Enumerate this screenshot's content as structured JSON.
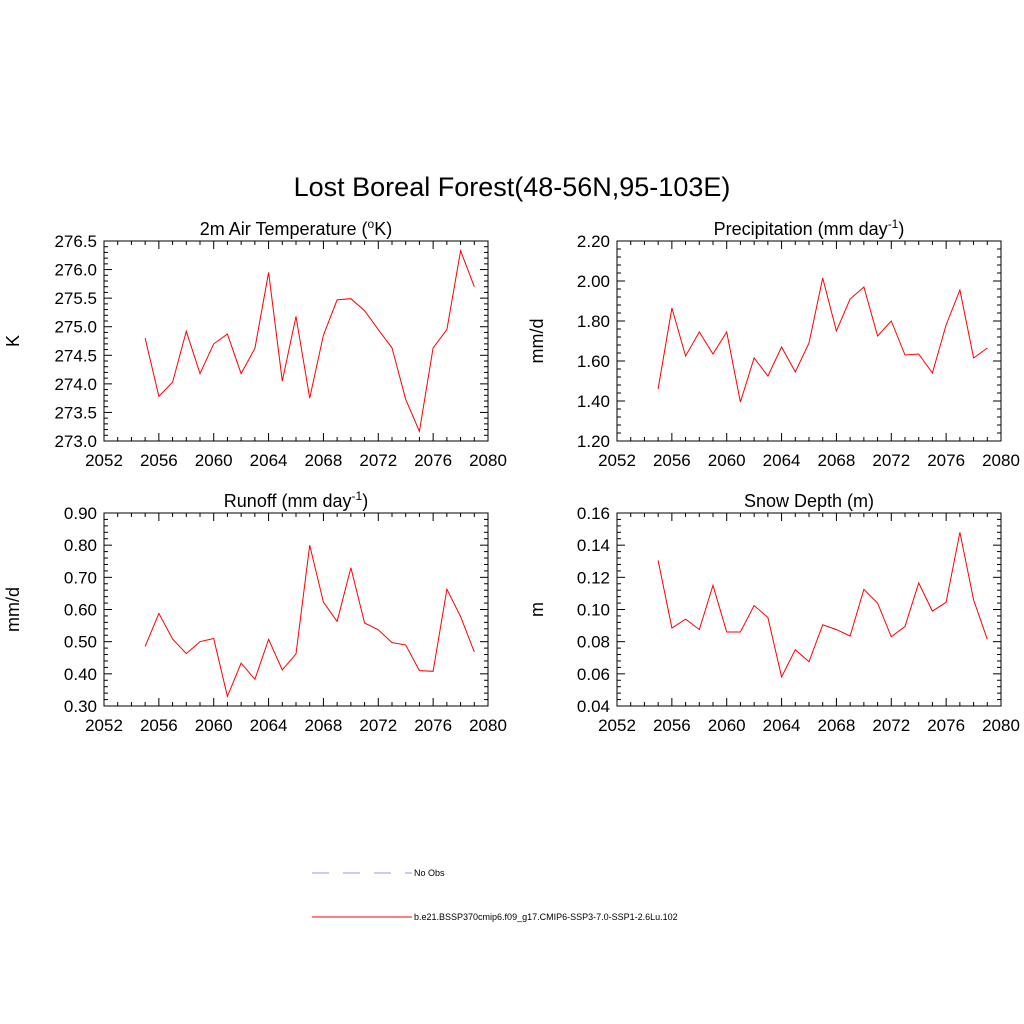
{
  "figure": {
    "title": "Lost Boreal Forest(48-56N,95-103E)",
    "line_color": "#ff0000",
    "obs_color": "#9999dd"
  },
  "legend": {
    "items": [
      {
        "label": "No Obs",
        "style": "dashed"
      },
      {
        "label": "b.e21.BSSP370cmip6.f09_g17.CMIP6-SSP3-7.0-SSP1-2.6Lu.102",
        "style": "solid"
      }
    ]
  },
  "chart_data": [
    {
      "type": "line",
      "title": "2m Air Temperature (",
      "title_sup": "o",
      "title_after": "K)",
      "xlabel": "",
      "ylabel": "K",
      "xlim": [
        2052,
        2080
      ],
      "ylim": [
        273.0,
        276.5
      ],
      "xticks": [
        "2052",
        "2056",
        "2060",
        "2064",
        "2068",
        "2072",
        "2076",
        "2080"
      ],
      "yticks": [
        "273.0",
        "273.5",
        "274.0",
        "274.5",
        "275.0",
        "275.5",
        "276.0",
        "276.5"
      ],
      "x": [
        2055,
        2056,
        2057,
        2058,
        2059,
        2060,
        2061,
        2062,
        2063,
        2064,
        2065,
        2066,
        2067,
        2068,
        2069,
        2070,
        2071,
        2072,
        2073,
        2074,
        2075,
        2076,
        2077,
        2078,
        2079
      ],
      "series": [
        {
          "values": [
            274.8,
            273.78,
            274.03,
            274.92,
            274.18,
            274.7,
            274.87,
            274.18,
            274.62,
            275.95,
            274.05,
            275.18,
            273.75,
            274.85,
            275.47,
            275.49,
            275.28,
            274.95,
            274.63,
            273.73,
            273.17,
            274.63,
            274.95,
            276.33,
            275.7
          ]
        }
      ]
    },
    {
      "type": "line",
      "title": "Precipitation (mm day",
      "title_sup": "-1",
      "title_after": ")",
      "xlabel": "",
      "ylabel": "mm/d",
      "xlim": [
        2052,
        2080
      ],
      "ylim": [
        1.2,
        2.2
      ],
      "xticks": [
        "2052",
        "2056",
        "2060",
        "2064",
        "2068",
        "2072",
        "2076",
        "2080"
      ],
      "yticks": [
        "1.20",
        "1.40",
        "1.60",
        "1.80",
        "2.00",
        "2.20"
      ],
      "x": [
        2055,
        2056,
        2057,
        2058,
        2059,
        2060,
        2061,
        2062,
        2063,
        2064,
        2065,
        2066,
        2067,
        2068,
        2069,
        2070,
        2071,
        2072,
        2073,
        2074,
        2075,
        2076,
        2077,
        2078,
        2079
      ],
      "series": [
        {
          "values": [
            1.46,
            1.865,
            1.625,
            1.745,
            1.635,
            1.745,
            1.395,
            1.615,
            1.525,
            1.67,
            1.545,
            1.69,
            2.015,
            1.75,
            1.91,
            1.97,
            1.725,
            1.8,
            1.63,
            1.635,
            1.54,
            1.78,
            1.955,
            1.615,
            1.665
          ]
        }
      ]
    },
    {
      "type": "line",
      "title": "Runoff (mm day",
      "title_sup": "-1",
      "title_after": ")",
      "xlabel": "",
      "ylabel": "mm/d",
      "xlim": [
        2052,
        2080
      ],
      "ylim": [
        0.3,
        0.9
      ],
      "xticks": [
        "2052",
        "2056",
        "2060",
        "2064",
        "2068",
        "2072",
        "2076",
        "2080"
      ],
      "yticks": [
        "0.30",
        "0.40",
        "0.50",
        "0.60",
        "0.70",
        "0.80",
        "0.90"
      ],
      "x": [
        2055,
        2056,
        2057,
        2058,
        2059,
        2060,
        2061,
        2062,
        2063,
        2064,
        2065,
        2066,
        2067,
        2068,
        2069,
        2070,
        2071,
        2072,
        2073,
        2074,
        2075,
        2076,
        2077,
        2078,
        2079
      ],
      "series": [
        {
          "values": [
            0.485,
            0.588,
            0.508,
            0.463,
            0.5,
            0.51,
            0.33,
            0.433,
            0.383,
            0.507,
            0.412,
            0.462,
            0.8,
            0.623,
            0.563,
            0.73,
            0.558,
            0.537,
            0.497,
            0.49,
            0.41,
            0.408,
            0.663,
            0.578,
            0.468
          ]
        }
      ]
    },
    {
      "type": "line",
      "title": "Snow Depth (m)",
      "title_sup": "",
      "title_after": "",
      "xlabel": "",
      "ylabel": "m",
      "xlim": [
        2052,
        2080
      ],
      "ylim": [
        0.04,
        0.16
      ],
      "xticks": [
        "2052",
        "2056",
        "2060",
        "2064",
        "2068",
        "2072",
        "2076",
        "2080"
      ],
      "yticks": [
        "0.04",
        "0.06",
        "0.08",
        "0.10",
        "0.12",
        "0.14",
        "0.16"
      ],
      "x": [
        2055,
        2056,
        2057,
        2058,
        2059,
        2060,
        2061,
        2062,
        2063,
        2064,
        2065,
        2066,
        2067,
        2068,
        2069,
        2070,
        2071,
        2072,
        2073,
        2074,
        2075,
        2076,
        2077,
        2078,
        2079
      ],
      "series": [
        {
          "values": [
            0.1305,
            0.0885,
            0.094,
            0.0875,
            0.115,
            0.086,
            0.086,
            0.1025,
            0.095,
            0.058,
            0.075,
            0.0675,
            0.0905,
            0.0875,
            0.0835,
            0.1125,
            0.104,
            0.083,
            0.0895,
            0.1165,
            0.099,
            0.1045,
            0.148,
            0.106,
            0.0815
          ]
        }
      ]
    }
  ]
}
